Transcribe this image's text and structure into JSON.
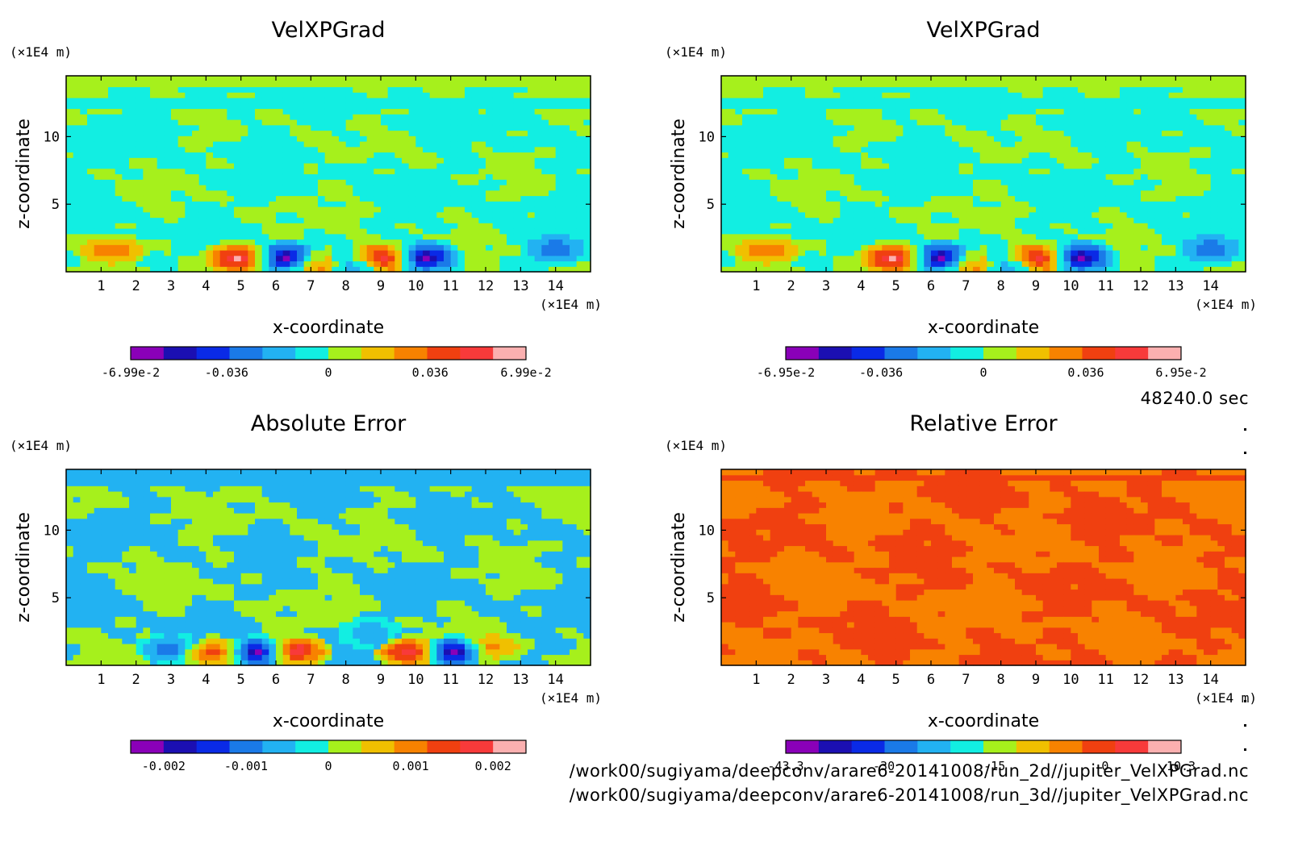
{
  "time_label": "48240.0 sec",
  "file_paths": [
    "/work00/sugiyama/deepconv/arare6-20141008/run_2d//jupiter_VelXPGrad.nc",
    "/work00/sugiyama/deepconv/arare6-20141008/run_3d//jupiter_VelXPGrad.nc"
  ],
  "colors": {
    "palette": [
      "#8a00b8",
      "#1b0fb2",
      "#0a2ae6",
      "#1a7ae8",
      "#22b2f2",
      "#12eee2",
      "#a6f01c",
      "#f0c000",
      "#f88200",
      "#f04010",
      "#f83a3a",
      "#fbb0b0"
    ]
  },
  "chart_data": [
    {
      "type": "heatmap",
      "title": "VelXPGrad",
      "xlabel": "x-coordinate",
      "ylabel": "z-coordinate",
      "x_unit": "(×1E4 m)",
      "y_unit": "(×1E4 m)",
      "xlim": [
        0,
        15
      ],
      "ylim": [
        0,
        14.5
      ],
      "x_ticks": [
        "1",
        "2",
        "3",
        "4",
        "5",
        "6",
        "7",
        "8",
        "9",
        "10",
        "11",
        "12",
        "13",
        "14"
      ],
      "y_ticks": [
        "5",
        "10"
      ],
      "colorbar": {
        "min": -0.0699,
        "max": 0.0699,
        "levels": 12,
        "tick_labels": [
          "-6.99e-2",
          "-0.036",
          "0",
          "0.036",
          "6.99e-2"
        ]
      },
      "field_style": "velx"
    },
    {
      "type": "heatmap",
      "title": "VelXPGrad",
      "xlabel": "x-coordinate",
      "ylabel": "z-coordinate",
      "x_unit": "(×1E4 m)",
      "y_unit": "(×1E4 m)",
      "xlim": [
        0,
        15
      ],
      "ylim": [
        0,
        14.5
      ],
      "x_ticks": [
        "1",
        "2",
        "3",
        "4",
        "5",
        "6",
        "7",
        "8",
        "9",
        "10",
        "11",
        "12",
        "13",
        "14"
      ],
      "y_ticks": [
        "5",
        "10"
      ],
      "colorbar": {
        "min": -0.0695,
        "max": 0.0695,
        "levels": 12,
        "tick_labels": [
          "-6.95e-2",
          "-0.036",
          "0",
          "0.036",
          "6.95e-2"
        ]
      },
      "field_style": "velx"
    },
    {
      "type": "heatmap",
      "title": "Absolute Error",
      "xlabel": "x-coordinate",
      "ylabel": "z-coordinate",
      "x_unit": "(×1E4 m)",
      "y_unit": "(×1E4 m)",
      "xlim": [
        0,
        15
      ],
      "ylim": [
        0,
        14.5
      ],
      "x_ticks": [
        "1",
        "2",
        "3",
        "4",
        "5",
        "6",
        "7",
        "8",
        "9",
        "10",
        "11",
        "12",
        "13",
        "14"
      ],
      "y_ticks": [
        "5",
        "10"
      ],
      "colorbar": {
        "min": -0.0024,
        "max": 0.0024,
        "levels": 12,
        "tick_labels": [
          "-0.002",
          "-0.001",
          "0",
          "0.001",
          "0.002"
        ]
      },
      "field_style": "abserr"
    },
    {
      "type": "heatmap",
      "title": "Relative Error",
      "xlabel": "x-coordinate",
      "ylabel": "z-coordinate",
      "x_unit": "(×1E4 m)",
      "y_unit": "(×1E4 m)",
      "xlim": [
        0,
        15
      ],
      "ylim": [
        0,
        14.5
      ],
      "x_ticks": [
        "1",
        "2",
        "3",
        "4",
        "5",
        "6",
        "7",
        "8",
        "9",
        "10",
        "11",
        "12",
        "13",
        "14"
      ],
      "y_ticks": [
        "5",
        "10"
      ],
      "colorbar": {
        "min": -43.3,
        "max": 10.3,
        "levels": 12,
        "tick_labels": [
          "-43.3",
          "-30",
          "-15",
          "0",
          "10.3"
        ]
      },
      "field_style": "relerr"
    }
  ]
}
